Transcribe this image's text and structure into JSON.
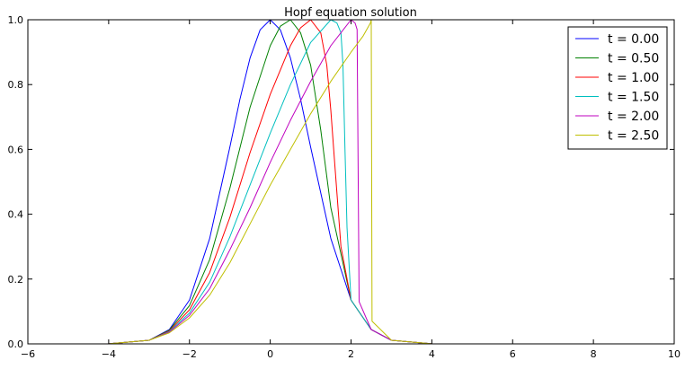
{
  "chart_data": {
    "type": "line",
    "title": "Hopf equation solution",
    "xlabel": "",
    "ylabel": "",
    "xlim": [
      -6,
      10
    ],
    "ylim": [
      0.0,
      1.0
    ],
    "x_ticks": [
      -6,
      -4,
      -2,
      0,
      2,
      4,
      6,
      8,
      10
    ],
    "x_tick_labels": [
      "−6",
      "−4",
      "−2",
      "0",
      "2",
      "4",
      "6",
      "8",
      "10"
    ],
    "y_ticks": [
      0.0,
      0.2,
      0.4,
      0.6,
      0.8,
      1.0
    ],
    "y_tick_labels": [
      "0.0",
      "0.2",
      "0.4",
      "0.6",
      "0.8",
      "1.0"
    ],
    "grid": false,
    "legend_position": "top-right",
    "series": [
      {
        "name": "t = 0.00",
        "color": "#0000ff",
        "x": [
          -5.0,
          -4.0,
          -3.0,
          -2.5,
          -2.0,
          -1.5,
          -1.0,
          -0.75,
          -0.5,
          -0.25,
          0.0,
          0.25,
          0.5,
          0.75,
          1.0,
          1.5,
          2.0,
          2.5,
          3.0,
          4.0,
          5.0,
          6.0,
          8.0,
          10.0
        ],
        "y": [
          0.0,
          0.0003,
          0.011,
          0.044,
          0.135,
          0.325,
          0.607,
          0.755,
          0.882,
          0.969,
          1.0,
          0.969,
          0.882,
          0.755,
          0.607,
          0.325,
          0.135,
          0.044,
          0.011,
          0.0003,
          0.0,
          0.0,
          0.0,
          0.0
        ]
      },
      {
        "name": "t = 0.50",
        "color": "#008000",
        "x": [
          -5.0,
          -4.0,
          -3.0,
          -2.5,
          -2.0,
          -1.5,
          -1.0,
          -0.5,
          0.0,
          0.25,
          0.5,
          0.75,
          1.0,
          1.25,
          1.5,
          2.0,
          2.5,
          3.0,
          4.0,
          5.0,
          6.0,
          8.0,
          10.0
        ],
        "y": [
          0.0,
          0.0003,
          0.011,
          0.042,
          0.118,
          0.26,
          0.48,
          0.73,
          0.92,
          0.98,
          1.0,
          0.96,
          0.86,
          0.66,
          0.42,
          0.135,
          0.044,
          0.011,
          0.0003,
          0.0,
          0.0,
          0.0,
          0.0
        ]
      },
      {
        "name": "t = 1.00",
        "color": "#ff0000",
        "x": [
          -5.0,
          -4.0,
          -3.0,
          -2.5,
          -2.0,
          -1.5,
          -1.0,
          -0.5,
          0.0,
          0.5,
          0.75,
          1.0,
          1.25,
          1.4,
          1.5,
          1.6,
          1.75,
          2.0,
          2.5,
          3.0,
          4.0,
          5.0,
          6.0,
          8.0,
          10.0
        ],
        "y": [
          0.0,
          0.0003,
          0.011,
          0.04,
          0.105,
          0.22,
          0.39,
          0.59,
          0.77,
          0.92,
          0.975,
          1.0,
          0.96,
          0.86,
          0.72,
          0.55,
          0.3,
          0.135,
          0.044,
          0.011,
          0.0003,
          0.0,
          0.0,
          0.0,
          0.0
        ]
      },
      {
        "name": "t = 1.50",
        "color": "#00bfbf",
        "x": [
          -5.0,
          -4.0,
          -3.0,
          -2.5,
          -2.0,
          -1.5,
          -1.0,
          -0.5,
          0.0,
          0.5,
          1.0,
          1.5,
          1.65,
          1.75,
          1.8,
          1.85,
          1.9,
          2.0,
          2.5,
          3.0,
          4.0,
          5.0,
          6.0,
          8.0,
          10.0
        ],
        "y": [
          0.0,
          0.0003,
          0.011,
          0.038,
          0.095,
          0.19,
          0.33,
          0.49,
          0.65,
          0.8,
          0.93,
          1.0,
          0.99,
          0.96,
          0.86,
          0.6,
          0.36,
          0.135,
          0.044,
          0.011,
          0.0003,
          0.0,
          0.0,
          0.0,
          0.0
        ]
      },
      {
        "name": "t = 2.00",
        "color": "#bf00bf",
        "x": [
          -5.0,
          -4.0,
          -3.0,
          -2.5,
          -2.0,
          -1.5,
          -1.0,
          -0.5,
          0.0,
          0.5,
          1.0,
          1.5,
          2.0,
          2.1,
          2.15,
          2.2,
          2.5,
          3.0,
          4.0,
          5.0,
          6.0,
          8.0,
          10.0
        ],
        "y": [
          0.0,
          0.0003,
          0.011,
          0.036,
          0.088,
          0.17,
          0.29,
          0.42,
          0.56,
          0.69,
          0.81,
          0.92,
          1.0,
          0.99,
          0.97,
          0.13,
          0.044,
          0.011,
          0.0003,
          0.0,
          0.0,
          0.0,
          0.0
        ]
      },
      {
        "name": "t = 2.50",
        "color": "#bfbf00",
        "x": [
          -5.0,
          -4.0,
          -3.0,
          -2.5,
          -2.0,
          -1.5,
          -1.0,
          -0.5,
          0.0,
          0.5,
          1.0,
          1.5,
          2.0,
          2.3,
          2.48,
          2.5,
          2.52,
          3.0,
          4.0,
          5.0,
          6.0,
          8.0,
          10.0
        ],
        "y": [
          0.0,
          0.0003,
          0.011,
          0.034,
          0.08,
          0.15,
          0.25,
          0.37,
          0.49,
          0.6,
          0.71,
          0.81,
          0.9,
          0.95,
          0.99,
          1.0,
          0.07,
          0.011,
          0.0003,
          0.0,
          0.0,
          0.0,
          0.0
        ]
      }
    ]
  }
}
